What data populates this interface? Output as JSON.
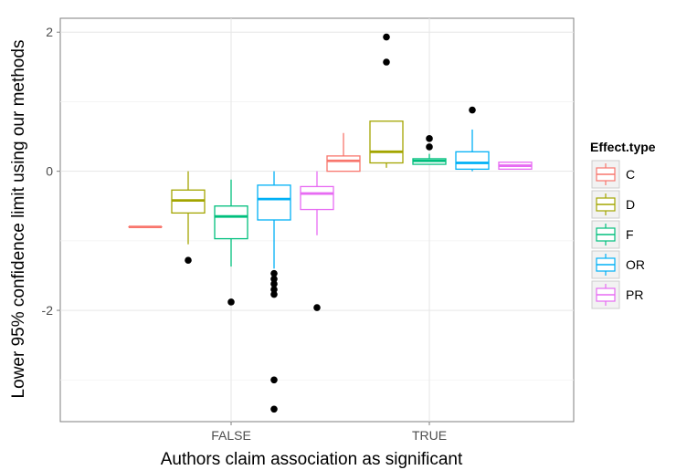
{
  "chart_data": {
    "type": "box",
    "xlabel": "Authors claim association as significant",
    "ylabel": "Lower 95% confidence limit using our methods",
    "ylim": [
      -3.6,
      2.2
    ],
    "yticks": [
      -2,
      0,
      2
    ],
    "categories": [
      "FALSE",
      "TRUE"
    ],
    "grid": "light grey major and minor gridlines",
    "legend": {
      "title": "Effect.type",
      "position": "right",
      "entries": [
        "C",
        "D",
        "F",
        "OR",
        "PR"
      ]
    },
    "colors": {
      "C": "#F8766D",
      "D": "#A3A500",
      "F": "#00BF7D",
      "OR": "#00B0F6",
      "PR": "#E76BF3"
    },
    "series": [
      {
        "name": "C",
        "boxes": [
          {
            "category": "FALSE",
            "min": -0.8,
            "q1": -0.8,
            "median": -0.8,
            "q3": -0.8,
            "max": -0.8,
            "outliers": []
          },
          {
            "category": "TRUE",
            "min": 0.0,
            "q1": 0.0,
            "median": 0.15,
            "q3": 0.22,
            "max": 0.55,
            "outliers": []
          }
        ]
      },
      {
        "name": "D",
        "boxes": [
          {
            "category": "FALSE",
            "min": -1.05,
            "q1": -0.6,
            "median": -0.42,
            "q3": -0.27,
            "max": 0.0,
            "outliers": [
              -1.28
            ]
          },
          {
            "category": "TRUE",
            "min": 0.05,
            "q1": 0.12,
            "median": 0.28,
            "q3": 0.72,
            "max": 0.72,
            "outliers": [
              1.93,
              1.57
            ]
          }
        ]
      },
      {
        "name": "F",
        "boxes": [
          {
            "category": "FALSE",
            "min": -1.37,
            "q1": -0.97,
            "median": -0.65,
            "q3": -0.5,
            "max": -0.12,
            "outliers": [
              -1.88
            ]
          },
          {
            "category": "TRUE",
            "min": 0.1,
            "q1": 0.1,
            "median": 0.15,
            "q3": 0.18,
            "max": 0.25,
            "outliers": [
              0.47,
              0.35
            ]
          }
        ]
      },
      {
        "name": "OR",
        "boxes": [
          {
            "category": "FALSE",
            "min": -1.4,
            "q1": -0.7,
            "median": -0.4,
            "q3": -0.2,
            "max": 0.0,
            "outliers": [
              -1.47,
              -1.55,
              -1.62,
              -1.7,
              -1.77,
              -3.0,
              -3.42
            ]
          },
          {
            "category": "TRUE",
            "min": 0.0,
            "q1": 0.03,
            "median": 0.12,
            "q3": 0.28,
            "max": 0.6,
            "outliers": [
              0.88
            ]
          }
        ]
      },
      {
        "name": "PR",
        "boxes": [
          {
            "category": "FALSE",
            "min": -0.92,
            "q1": -0.55,
            "median": -0.32,
            "q3": -0.22,
            "max": 0.0,
            "outliers": [
              -1.96
            ]
          },
          {
            "category": "TRUE",
            "min": 0.03,
            "q1": 0.03,
            "median": 0.08,
            "q3": 0.13,
            "max": 0.13,
            "outliers": []
          }
        ]
      }
    ]
  }
}
